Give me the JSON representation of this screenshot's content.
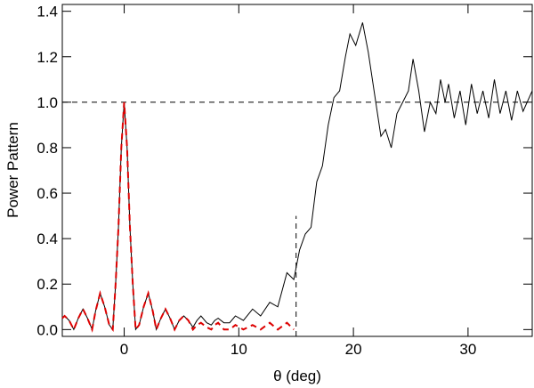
{
  "chart_data": {
    "type": "line",
    "xlabel": "θ (deg)",
    "ylabel": "Power Pattern",
    "xlim": [
      -5.4,
      35.6
    ],
    "ylim": [
      -0.03,
      1.43
    ],
    "xticks": [
      0,
      10,
      20,
      30
    ],
    "yticks": [
      {
        "value": 0,
        "label": "0.0"
      },
      0.2,
      0.4,
      0.6,
      0.8,
      {
        "value": 1,
        "label": "1.0"
      },
      1.2,
      1.4
    ],
    "hline": {
      "y": 1
    },
    "vline": {
      "x": 15,
      "ymax": 0.5
    },
    "x": [
      -5.4,
      -5.2,
      -4.8,
      -4.4,
      -4.0,
      -3.6,
      -3.2,
      -2.8,
      -2.5,
      -2.1,
      -1.7,
      -1.3,
      -1.0,
      -0.75,
      -0.5,
      -0.25,
      0,
      0.25,
      0.5,
      0.75,
      1.0,
      1.3,
      1.7,
      2.1,
      2.5,
      2.8,
      3.2,
      3.6,
      4.0,
      4.4,
      4.8,
      5.2,
      5.6,
      6.0,
      6.35,
      6.7,
      7.2,
      7.6,
      7.9,
      8.2,
      8.7,
      9.2,
      9.7,
      10.4,
      11.2,
      11.9,
      12.7,
      13.4,
      14.2,
      14.8,
      15.3,
      15.8,
      16.3,
      16.8,
      17.3,
      17.8,
      18.3,
      18.8,
      19.3,
      19.7,
      20.2,
      20.8,
      21.3,
      21.8,
      22.4,
      22.8,
      23.3,
      23.8,
      24.3,
      24.8,
      25.2,
      25.7,
      26.2,
      26.7,
      27.2,
      27.6,
      28.0,
      28.3,
      28.8,
      29.3,
      29.8,
      30.3,
      30.8,
      31.3,
      31.8,
      32.3,
      32.8,
      33.3,
      33.8,
      34.3,
      34.8,
      35.6
    ],
    "series": [
      {
        "name": "black",
        "color": "#000000",
        "dash": false,
        "values": [
          0.05,
          0.06,
          0.04,
          0.0,
          0.05,
          0.09,
          0.05,
          0.0,
          0.08,
          0.16,
          0.1,
          0.02,
          0.0,
          0.2,
          0.45,
          0.8,
          1.0,
          0.8,
          0.45,
          0.2,
          0.0,
          0.02,
          0.1,
          0.16,
          0.08,
          0.0,
          0.05,
          0.09,
          0.05,
          0.0,
          0.04,
          0.06,
          0.04,
          0.01,
          0.04,
          0.06,
          0.03,
          0.02,
          0.04,
          0.05,
          0.03,
          0.03,
          0.06,
          0.04,
          0.09,
          0.06,
          0.12,
          0.1,
          0.25,
          0.22,
          0.35,
          0.42,
          0.45,
          0.65,
          0.72,
          0.9,
          1.02,
          1.05,
          1.2,
          1.3,
          1.25,
          1.35,
          1.22,
          1.05,
          0.85,
          0.88,
          0.8,
          0.95,
          1.0,
          1.05,
          1.19,
          1.05,
          0.87,
          1.0,
          0.95,
          1.1,
          1.0,
          1.08,
          0.93,
          1.05,
          0.9,
          1.08,
          0.95,
          1.05,
          0.93,
          1.1,
          0.95,
          1.05,
          0.92,
          1.05,
          0.96,
          1.05
        ]
      },
      {
        "name": "red",
        "color": "#dd0000",
        "dash": true,
        "values": [
          0.05,
          0.06,
          0.04,
          0.0,
          0.05,
          0.09,
          0.05,
          0.0,
          0.08,
          0.16,
          0.1,
          0.02,
          0.0,
          0.2,
          0.45,
          0.8,
          1.0,
          0.8,
          0.45,
          0.2,
          0.0,
          0.02,
          0.1,
          0.16,
          0.08,
          0.0,
          0.05,
          0.09,
          0.05,
          0.0,
          0.04,
          0.06,
          0.04,
          0.0,
          0.02,
          0.03,
          0.01,
          0.0,
          0.02,
          0.03,
          0.0,
          0.0,
          0.02,
          0.0,
          0.02,
          0.0,
          0.03,
          0.0,
          0.03,
          0.0,
          null,
          null,
          null,
          null,
          null,
          null,
          null,
          null,
          null,
          null,
          null,
          null,
          null,
          null,
          null,
          null,
          null,
          null,
          null,
          null,
          null,
          null,
          null,
          null,
          null,
          null,
          null,
          null,
          null,
          null,
          null,
          null,
          null,
          null,
          null,
          null,
          null,
          null,
          null,
          null,
          null,
          null
        ]
      }
    ]
  }
}
